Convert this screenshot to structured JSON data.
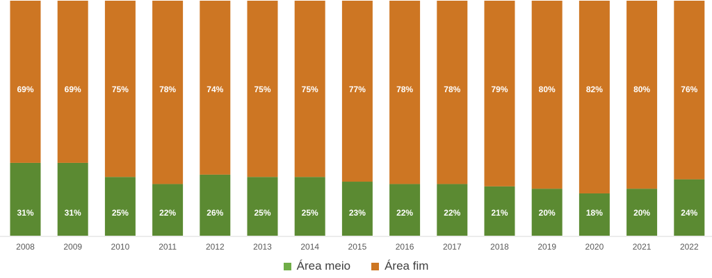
{
  "chart_data": {
    "type": "bar",
    "stacked": true,
    "percent_stacked": true,
    "categories": [
      "2008",
      "2009",
      "2010",
      "2011",
      "2012",
      "2013",
      "2014",
      "2015",
      "2016",
      "2017",
      "2018",
      "2019",
      "2020",
      "2021",
      "2022"
    ],
    "series": [
      {
        "name": "Área meio",
        "color": "#5b8a32",
        "values": [
          31,
          31,
          25,
          22,
          26,
          25,
          25,
          23,
          22,
          22,
          21,
          20,
          18,
          20,
          24
        ],
        "labels": [
          "31%",
          "31%",
          "25%",
          "22%",
          "26%",
          "25%",
          "25%",
          "23%",
          "22%",
          "22%",
          "21%",
          "20%",
          "18%",
          "20%",
          "24%"
        ]
      },
      {
        "name": "Área fim",
        "color": "#cd7623",
        "values": [
          69,
          69,
          75,
          78,
          74,
          75,
          75,
          77,
          78,
          78,
          79,
          80,
          82,
          80,
          76
        ],
        "labels": [
          "69%",
          "69%",
          "75%",
          "78%",
          "74%",
          "75%",
          "75%",
          "77%",
          "78%",
          "78%",
          "79%",
          "80%",
          "82%",
          "80%",
          "76%"
        ]
      }
    ],
    "legend_colors": [
      "#70ad47",
      "#cd7623"
    ],
    "ylim": [
      0,
      100
    ],
    "grid": false,
    "legend_position": "bottom"
  }
}
